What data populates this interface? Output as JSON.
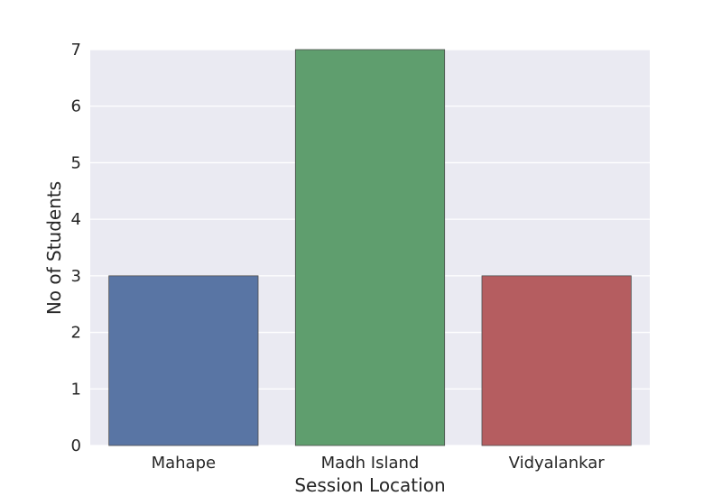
{
  "chart_data": {
    "type": "bar",
    "categories": [
      "Mahape",
      "Madh Island",
      "Vidyalankar"
    ],
    "values": [
      3,
      7,
      3
    ],
    "xlabel": "Session Location",
    "ylabel": "No of Students",
    "ylim": [
      0,
      7
    ],
    "yticks": [
      "0",
      "1",
      "2",
      "3",
      "4",
      "5",
      "6",
      "7"
    ],
    "grid": true,
    "colors": {
      "plot_background": "#EAEAF2",
      "grid": "#FFFFFF",
      "bars": [
        "#5975A4",
        "#5F9E6E",
        "#B55D60"
      ],
      "bar_edge": "#4d4d4d"
    }
  }
}
